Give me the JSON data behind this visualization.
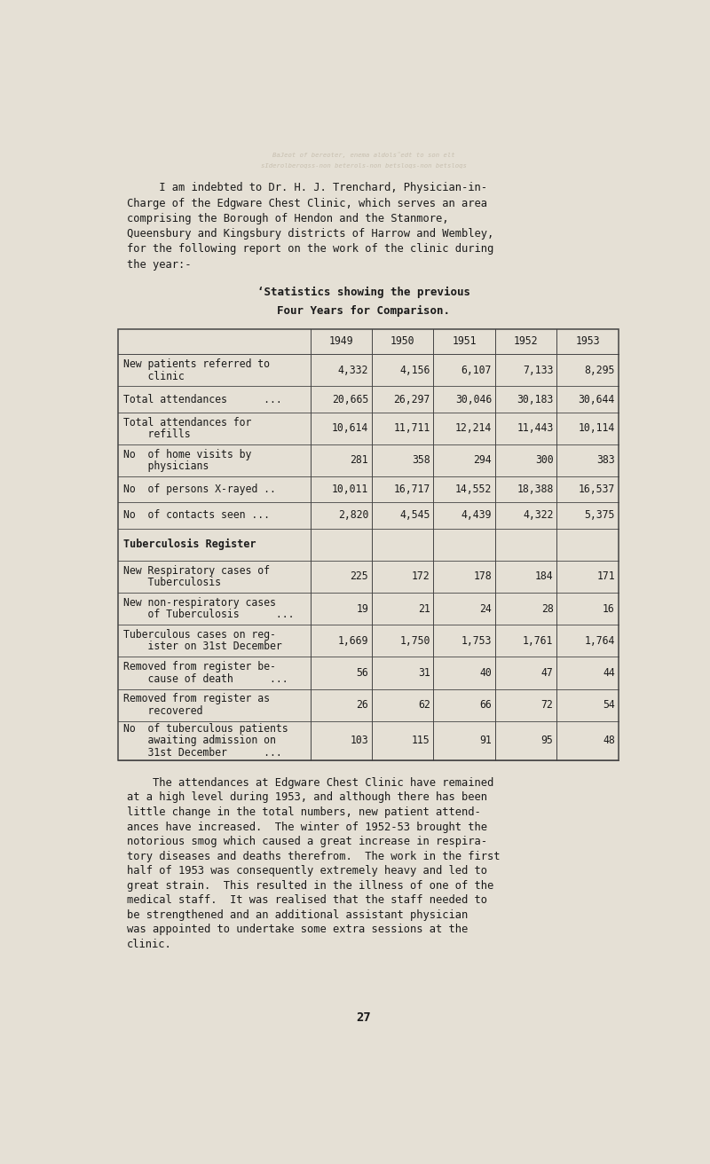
{
  "bg_color": "#e5e0d5",
  "text_color": "#1a1a1a",
  "page_width": 8.0,
  "page_height": 13.12,
  "intro_line1": "     I am indebted to Dr. H. J. Trenchard, Physician-in-",
  "intro_line2": "Charge of the Edgware Chest Clinic, which serves an area",
  "intro_line3": "comprising the Borough of Hendon and the Stanmore,",
  "intro_line4": "Queensbury and Kingsbury districts of Harrow and Wembley,",
  "intro_line5": "for the following report on the work of the clinic during",
  "intro_line6": "the year:-",
  "table_title_1": "‘Statistics showing the previous",
  "table_title_2": "Four Years for Comparison.",
  "years": [
    "1949",
    "1950",
    "1951",
    "1952",
    "1953"
  ],
  "rows": [
    {
      "label1": "New patients referred to",
      "label2": "    clinic",
      "label3": "",
      "values": [
        "4,332",
        "4,156",
        "6,107",
        "7,133",
        "8,295"
      ],
      "bold": false,
      "nlines": 2
    },
    {
      "label1": "Total attendances      ...",
      "label2": "",
      "label3": "",
      "values": [
        "20,665",
        "26,297",
        "30,046",
        "30,183",
        "30,644"
      ],
      "bold": false,
      "nlines": 1
    },
    {
      "label1": "Total attendances for",
      "label2": "    refills",
      "label3": "",
      "values": [
        "10,614",
        "11,711",
        "12,214",
        "11,443",
        "10,114"
      ],
      "bold": false,
      "nlines": 2
    },
    {
      "label1": "No  of home visits by",
      "label2": "    physicians",
      "label3": "",
      "values": [
        "281",
        "358",
        "294",
        "300",
        "383"
      ],
      "bold": false,
      "nlines": 2
    },
    {
      "label1": "No  of persons X-rayed ..",
      "label2": "",
      "label3": "",
      "values": [
        "10,011",
        "16,717",
        "14,552",
        "18,388",
        "16,537"
      ],
      "bold": false,
      "nlines": 1
    },
    {
      "label1": "No  of contacts seen ...",
      "label2": "",
      "label3": "",
      "values": [
        "2,820",
        "4,545",
        "4,439",
        "4,322",
        "5,375"
      ],
      "bold": false,
      "nlines": 1
    },
    {
      "label1": "Tuberculosis Register",
      "label2": "",
      "label3": "",
      "values": [
        "",
        "",
        "",
        "",
        ""
      ],
      "bold": true,
      "nlines": 1
    },
    {
      "label1": "New Respiratory cases of",
      "label2": "    Tuberculosis",
      "label3": "",
      "values": [
        "225",
        "172",
        "178",
        "184",
        "171"
      ],
      "bold": false,
      "nlines": 2
    },
    {
      "label1": "New non-respiratory cases",
      "label2": "    of Tuberculosis      ...",
      "label3": "",
      "values": [
        "19",
        "21",
        "24",
        "28",
        "16"
      ],
      "bold": false,
      "nlines": 2
    },
    {
      "label1": "Tuberculous cases on reg-",
      "label2": "    ister on 31st December",
      "label3": "",
      "values": [
        "1,669",
        "1,750",
        "1,753",
        "1,761",
        "1,764"
      ],
      "bold": false,
      "nlines": 2
    },
    {
      "label1": "Removed from register be-",
      "label2": "    cause of death      ...",
      "label3": "",
      "values": [
        "56",
        "31",
        "40",
        "47",
        "44"
      ],
      "bold": false,
      "nlines": 2
    },
    {
      "label1": "Removed from register as",
      "label2": "    recovered",
      "label3": "",
      "values": [
        "26",
        "62",
        "66",
        "72",
        "54"
      ],
      "bold": false,
      "nlines": 2
    },
    {
      "label1": "No  of tuberculous patients",
      "label2": "    awaiting admission on",
      "label3": "    31st December      ...",
      "values": [
        "103",
        "115",
        "91",
        "95",
        "48"
      ],
      "bold": false,
      "nlines": 3
    }
  ],
  "closing_text_lines": [
    "    The attendances at Edgware Chest Clinic have remained",
    "at a high level during 1953, and although there has been",
    "little change in the total numbers, new patient attend-",
    "ances have increased.  The winter of 1952-53 brought the",
    "notorious smog which caused a great increase in respira-",
    "tory diseases and deaths therefrom.  The work in the first",
    "half of 1953 was consequently extremely heavy and led to",
    "great strain.  This resulted in the illness of one of the",
    "medical staff.  It was realised that the staff needed to",
    "be strengthened and an additional assistant physician",
    "was appointed to undertake some extra sessions at the",
    "clinic."
  ],
  "page_number": "27",
  "wm1": "BaJeot of bereoter, enema aldols˜edt to son elt",
  "wm2": "sIderolberoqss-non beterols-non betsloqs-non betsloqs"
}
